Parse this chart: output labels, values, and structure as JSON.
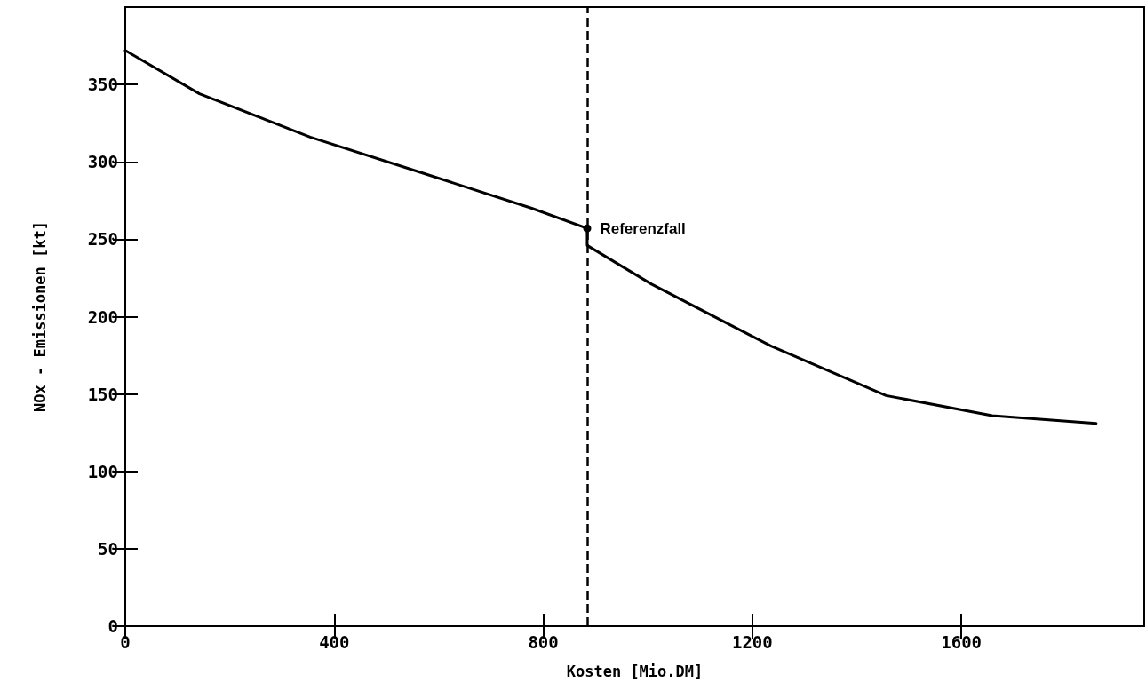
{
  "chart_data": {
    "type": "line",
    "xlabel": "Kosten [Mio.DM]",
    "ylabel": "NOx - Emissionen [kt]",
    "x": [
      0,
      142,
      354,
      558,
      778,
      884,
      884,
      1007,
      1236,
      1456,
      1659,
      1858
    ],
    "series": [
      {
        "color": "#000000",
        "values": [
          372,
          344,
          316,
          294,
          270,
          257,
          246,
          221,
          181,
          149,
          136,
          131
        ]
      }
    ],
    "xlim": [
      0,
      1950
    ],
    "xticks": [
      0,
      400,
      800,
      1200,
      1600
    ],
    "ylim": [
      0,
      400
    ],
    "yticks": [
      0,
      50,
      100,
      150,
      200,
      250,
      300,
      350
    ],
    "ref_lines": [
      {
        "axis": "x",
        "value": 884,
        "line_style": "dashed",
        "color": "#000000"
      }
    ],
    "annotations": [
      {
        "text": "Referenzfall",
        "x": 884,
        "y": 257
      }
    ],
    "marker": "none",
    "line_style": "solid"
  }
}
